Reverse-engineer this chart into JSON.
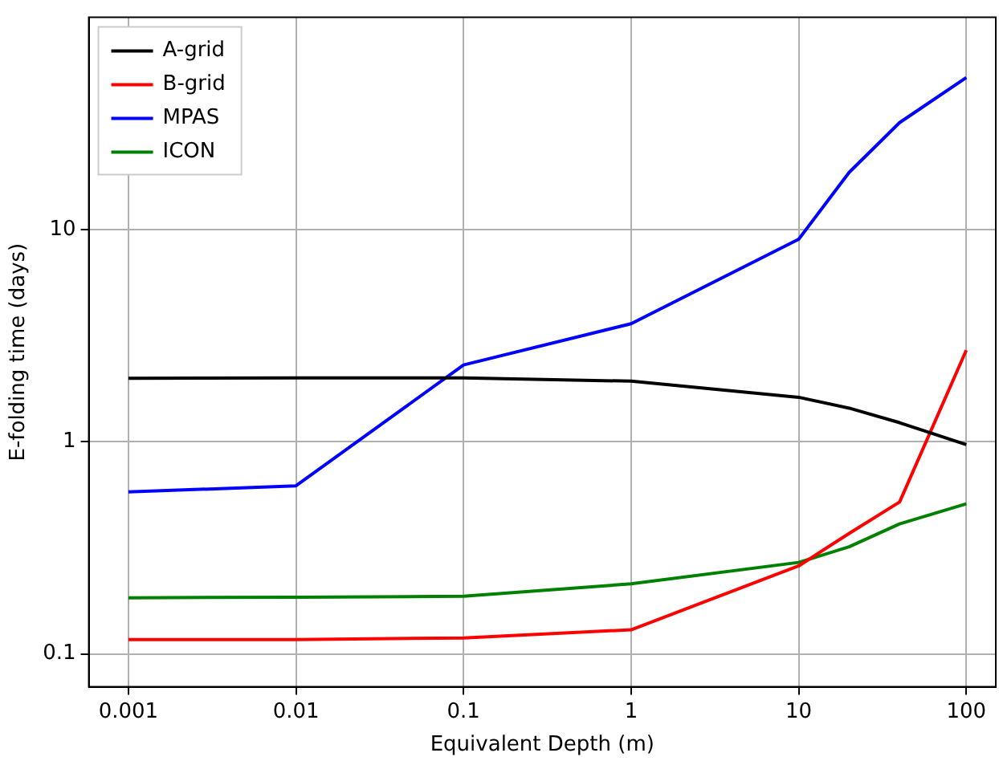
{
  "chart_data": {
    "type": "line",
    "xlabel": "Equivalent Depth (m)",
    "ylabel": "E-folding time (days)",
    "x": [
      0.001,
      0.01,
      0.1,
      1,
      10,
      20,
      40,
      100
    ],
    "series": [
      {
        "name": "A-grid",
        "color": "#000000",
        "values": [
          1.99,
          2.0,
          2.0,
          1.93,
          1.62,
          1.44,
          1.23,
          0.97
        ]
      },
      {
        "name": "B-grid",
        "color": "#ff0000",
        "values": [
          0.117,
          0.117,
          0.119,
          0.13,
          0.26,
          0.37,
          0.52,
          2.7
        ]
      },
      {
        "name": "MPAS",
        "color": "#0000ff",
        "values": [
          0.58,
          0.62,
          2.3,
          3.6,
          9,
          18.6,
          31.9,
          52
        ]
      },
      {
        "name": "ICON",
        "color": "#008000",
        "values": [
          0.184,
          0.185,
          0.187,
          0.214,
          0.27,
          0.32,
          0.41,
          0.51
        ]
      }
    ],
    "log": "xy",
    "xlim": [
      0.00058,
      150
    ],
    "ylim": [
      0.07,
      100
    ],
    "xticks": [
      0.001,
      0.01,
      0.1,
      1,
      10,
      100
    ],
    "yticks": [
      0.1,
      1,
      10
    ],
    "grid": true,
    "legend": "top left",
    "marker": "none",
    "line_style": "solid"
  }
}
